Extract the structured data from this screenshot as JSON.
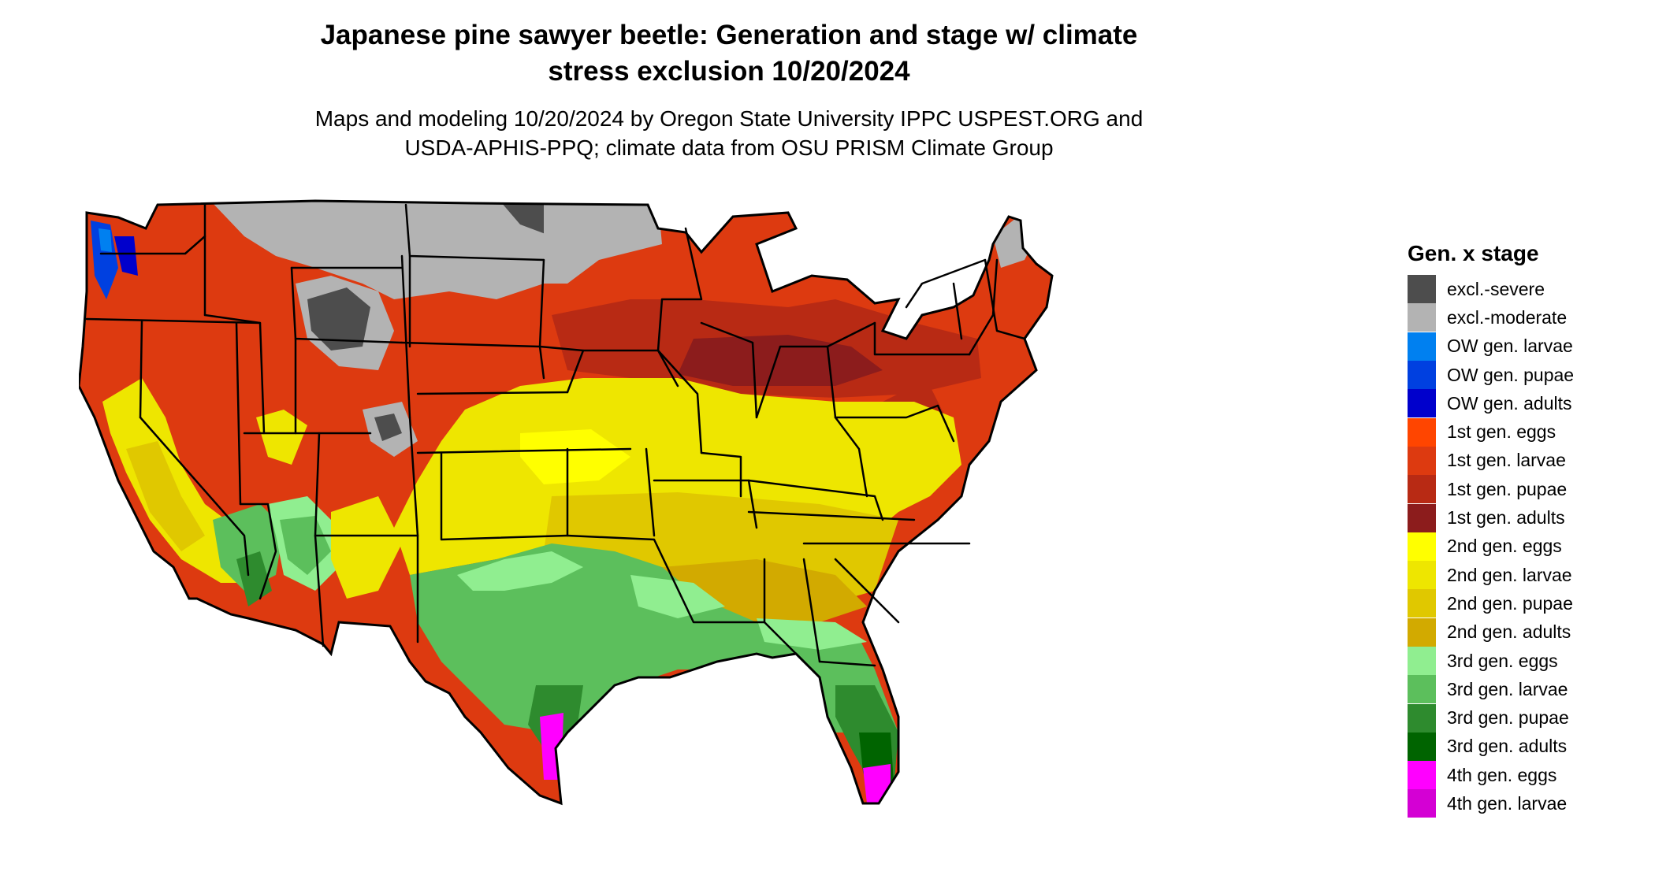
{
  "header": {
    "title_line1": "Japanese pine sawyer beetle: Generation and stage w/ climate",
    "title_line2": "stress exclusion 10/20/2024",
    "subtitle_line1": "Maps and modeling 10/20/2024 by Oregon State University IPPC USPEST.ORG and",
    "subtitle_line2": "USDA-APHIS-PPQ; climate data from OSU PRISM Climate Group"
  },
  "legend": {
    "title": "Gen. x stage",
    "items": [
      {
        "label": "excl.-severe",
        "color": "#4d4d4d"
      },
      {
        "label": "excl.-moderate",
        "color": "#b3b3b3"
      },
      {
        "label": "OW gen. larvae",
        "color": "#0080f0"
      },
      {
        "label": "OW gen. pupae",
        "color": "#0040e0"
      },
      {
        "label": "OW gen. adults",
        "color": "#0000cc"
      },
      {
        "label": "1st gen. eggs",
        "color": "#ff4500"
      },
      {
        "label": "1st gen. larvae",
        "color": "#dd3a10"
      },
      {
        "label": "1st gen. pupae",
        "color": "#b82a14"
      },
      {
        "label": "1st gen. adults",
        "color": "#8c1c1c"
      },
      {
        "label": "2nd gen. eggs",
        "color": "#ffff00"
      },
      {
        "label": "2nd gen. larvae",
        "color": "#eee600"
      },
      {
        "label": "2nd gen. pupae",
        "color": "#e0c800"
      },
      {
        "label": "2nd gen. adults",
        "color": "#d2aa00"
      },
      {
        "label": "3rd gen. eggs",
        "color": "#90ee90"
      },
      {
        "label": "3rd gen. larvae",
        "color": "#5cbf5c"
      },
      {
        "label": "3rd gen. pupae",
        "color": "#2e8b2e"
      },
      {
        "label": "3rd gen. adults",
        "color": "#006400"
      },
      {
        "label": "4th gen. eggs",
        "color": "#ff00ff"
      },
      {
        "label": "4th gen. larvae",
        "color": "#d400d4"
      }
    ]
  }
}
